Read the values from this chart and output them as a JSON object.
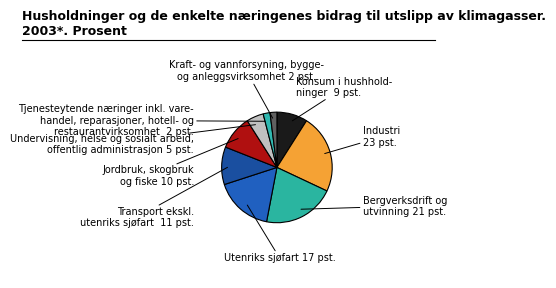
{
  "title": "Husholdninger og de enkelte næringenes bidrag til utslipp av klimagasser.\n2003*. Prosent",
  "segments": [
    {
      "label": "Konsum i husholdninger  9 pst.",
      "value": 9,
      "color": "#1a1a1a"
    },
    {
      "label": "Industri\n23 pst.",
      "value": 23,
      "color": "#f5a234"
    },
    {
      "label": "Bergverksdrift og\nutvinning 21 pst.",
      "value": 21,
      "color": "#2ab5a0"
    },
    {
      "label": "Utenriks sjøfart 17 pst.",
      "value": 17,
      "color": "#2060c0"
    },
    {
      "label": "Transport ekskl.\nutenriks sjøfart  11 pst.",
      "value": 11,
      "color": "#1a4fa0"
    },
    {
      "label": "Jordbruk, skogbruk\nog fiske 10 pst.",
      "value": 10,
      "color": "#b01010"
    },
    {
      "label": "Undervisning, helse og sosialt arbeid,\noffentlig administrasjon 5 pst.",
      "value": 5,
      "color": "#c0c0c0"
    },
    {
      "label": "Tjenesteytende næringer inkl. vare-\nhandel, reparasjoner, hotell- og\nrestaurantvirksomhet  2 pst.",
      "value": 2,
      "color": "#30b8b0"
    },
    {
      "label": "Kraft- og vannforsyning, bygge-\nog anleggsvirksomhet 2 pst.",
      "value": 2,
      "color": "#606060"
    }
  ],
  "startangle": 90,
  "background_color": "#ffffff",
  "title_fontsize": 9,
  "label_fontsize": 7
}
